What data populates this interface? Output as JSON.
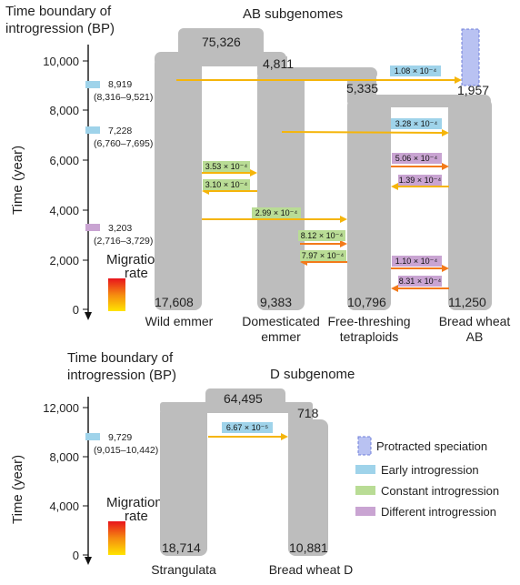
{
  "colors": {
    "branch": "#bdbdbd",
    "early": "#9fd3ea",
    "constant": "#b9dc95",
    "different": "#c9a4d2",
    "protracted_fill": "#b9c2f2",
    "protracted_edge": "#6f7fd9",
    "arrow_yellow": "#f5b50a",
    "arrow_orange": "#f37a1a"
  },
  "panel_ab": {
    "title": "AB subgenomes",
    "yaxis_title_line1": "Time boundary of",
    "yaxis_title_line2": "introgression (BP)",
    "ylabel": "Time (year)",
    "ticks": [
      "10,000",
      "8,000",
      "6,000",
      "4,000",
      "2,000",
      "0"
    ],
    "boundaries": [
      {
        "type": "early",
        "value": "8,919",
        "range": "(8,316–9,521)"
      },
      {
        "type": "early",
        "value": "7,228",
        "range": "(6,760–7,695)"
      },
      {
        "type": "different",
        "value": "3,203",
        "range": "(2,716–3,729)"
      }
    ],
    "migration_label_line1": "Migration",
    "migration_label_line2": "rate",
    "split_times": [
      "75,326",
      "4,811",
      "5,335",
      "1,957"
    ],
    "pop_sizes": [
      "17,608",
      "9,383",
      "10,796",
      "11,250"
    ],
    "taxa": [
      {
        "line1": "Wild emmer",
        "line2": ""
      },
      {
        "line1": "Domesticated",
        "line2": "emmer"
      },
      {
        "line1": "Free-threshing",
        "line2": "tetraploids"
      },
      {
        "line1": "Bread wheat",
        "line2": "AB"
      }
    ],
    "rates": [
      "1.08 × 10⁻⁴",
      "3.28 × 10⁻⁴",
      "5.06 × 10⁻⁴",
      "1.39 × 10⁻⁴",
      "3.53 × 10⁻⁴",
      "3.10 × 10⁻⁴",
      "2.99 × 10⁻⁴",
      "8.12 × 10⁻⁴",
      "7.97 × 10⁻⁴",
      "1.10 × 10⁻⁴",
      "8.31 × 10⁻⁴"
    ]
  },
  "panel_d": {
    "title": "D subgenome",
    "yaxis_title_line1": "Time boundary of",
    "yaxis_title_line2": "introgression (BP)",
    "ylabel": "Time (year)",
    "ticks": [
      "12,000",
      "8,000",
      "4,000",
      "0"
    ],
    "boundaries": [
      {
        "type": "early",
        "value": "9,729",
        "range": "(9,015–10,442)"
      }
    ],
    "migration_label_line1": "Migration",
    "migration_label_line2": "rate",
    "split_times": [
      "64,495",
      "718"
    ],
    "pop_sizes": [
      "18,714",
      "10,881"
    ],
    "taxa": [
      "Strangulata",
      "Bread wheat D"
    ],
    "rates": [
      "6.67 × 10⁻⁵"
    ]
  },
  "legend": [
    {
      "type": "protracted",
      "label": "Protracted speciation"
    },
    {
      "type": "early",
      "label": "Early introgression"
    },
    {
      "type": "constant",
      "label": "Constant introgression"
    },
    {
      "type": "different",
      "label": "Different introgression"
    }
  ]
}
